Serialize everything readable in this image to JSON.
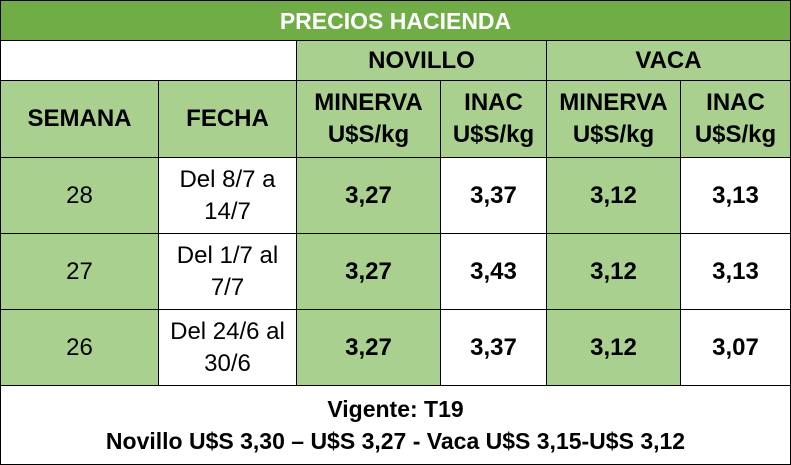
{
  "title": "PRECIOS HACIENDA",
  "groups": [
    "NOVILLO",
    "VACA"
  ],
  "columns": [
    "SEMANA",
    "FECHA",
    "MINERVA U$S/kg",
    "INAC U$S/kg",
    "MINERVA U$S/kg",
    "INAC U$S/kg"
  ],
  "rows": [
    [
      "28",
      "Del 8/7 a 14/7",
      "3,27",
      "3,37",
      "3,12",
      "3,13"
    ],
    [
      "27",
      "Del 1/7 al 7/7",
      "3,27",
      "3,43",
      "3,12",
      "3,13"
    ],
    [
      "26",
      "Del 24/6 al 30/6",
      "3,27",
      "3,37",
      "3,12",
      "3,07"
    ]
  ],
  "footer": {
    "line1": "Vigente: T19",
    "line2": "Novillo U$S 3,30 – U$S 3,27 - Vaca U$S 3,15-U$S 3,12"
  }
}
